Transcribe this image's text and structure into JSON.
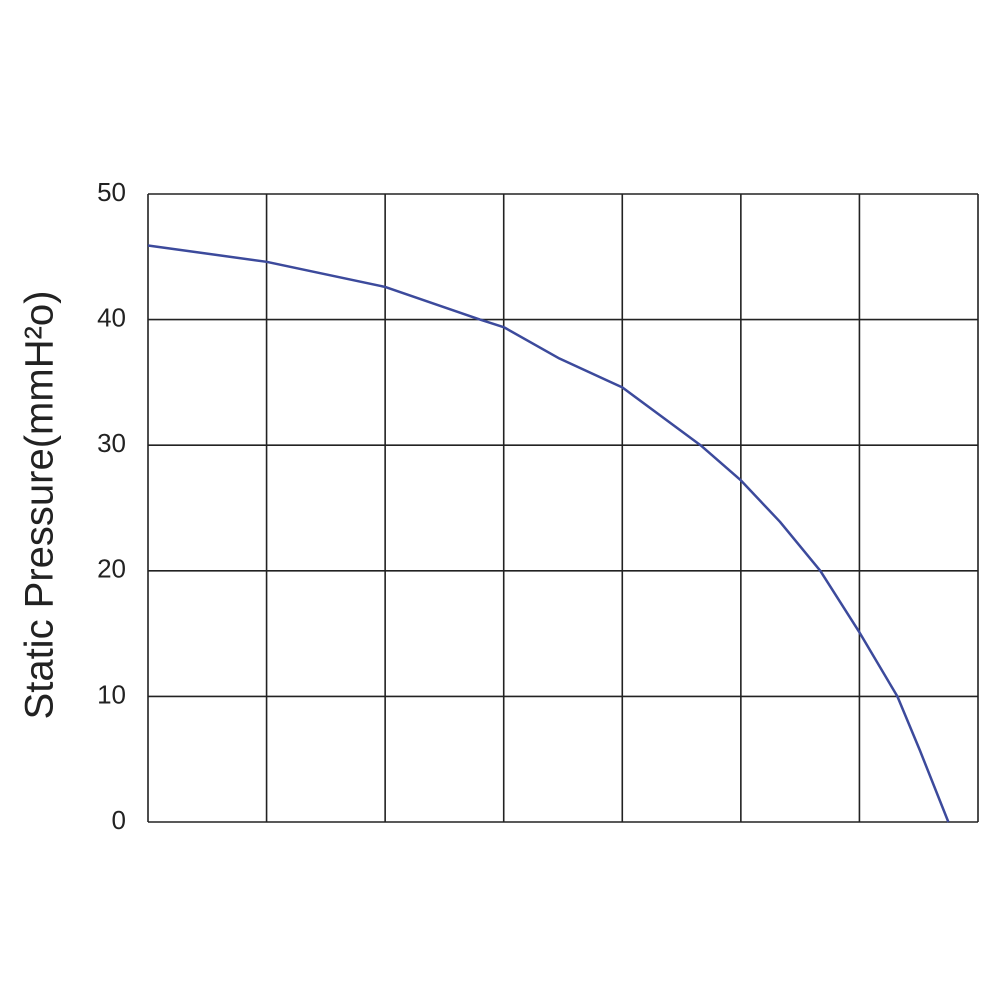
{
  "chart_data": {
    "type": "line",
    "y_label": "Static Pressure(mmH²o)",
    "x": [
      0,
      1,
      2,
      2.8,
      3,
      3.47,
      4,
      4.66,
      5,
      5.33,
      5.67,
      6,
      6.32,
      6.51,
      6.75
    ],
    "series": [
      {
        "color": "#3c4a9c",
        "values": [
          45.9,
          44.6,
          42.6,
          40.0,
          39.4,
          36.9,
          34.6,
          30.0,
          27.2,
          23.9,
          20.0,
          15.1,
          10.0,
          5.7,
          0
        ]
      }
    ],
    "xlim": [
      0,
      7
    ],
    "xticks": [
      0,
      1,
      2,
      3,
      4,
      5,
      6,
      7
    ],
    "xtick_labels": false,
    "ylim": [
      0,
      50
    ],
    "yticks": [
      0,
      10,
      20,
      30,
      40,
      50
    ],
    "grid": true
  }
}
